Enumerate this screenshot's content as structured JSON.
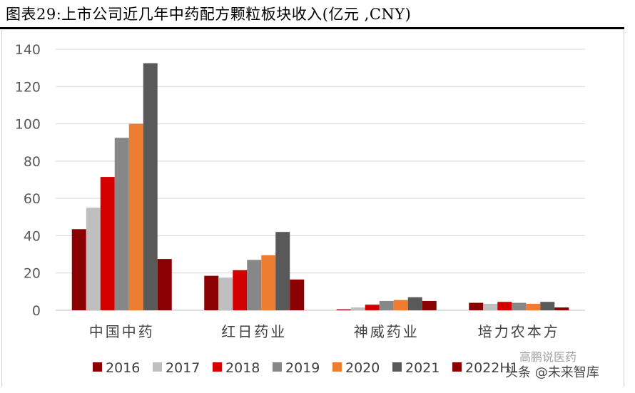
{
  "title": "图表29:上市公司近几年中药配方颗粒板块收入(亿元 ,CNY)",
  "watermark_main": "头条 @未来智库",
  "watermark_sub": "高鹏说医药",
  "chart_data": {
    "type": "bar",
    "title": "图表29:上市公司近几年中药配方颗粒板块收入(亿元 ,CNY)",
    "xlabel": "",
    "ylabel": "",
    "ylim": [
      0,
      140
    ],
    "yticks": [
      0,
      20,
      40,
      60,
      80,
      100,
      120,
      140
    ],
    "grid": true,
    "legend_position": "bottom",
    "categories": [
      "中国中药",
      "红日药业",
      "神威药业",
      "培力农本方"
    ],
    "series": [
      {
        "name": "2016",
        "color": "#8b0000",
        "values": [
          43.5,
          18.5,
          0.5,
          4
        ]
      },
      {
        "name": "2017",
        "color": "#bfbfbf",
        "values": [
          55,
          17.5,
          1.5,
          3.5
        ]
      },
      {
        "name": "2018",
        "color": "#d40000",
        "values": [
          71.5,
          21.5,
          3,
          4.5
        ]
      },
      {
        "name": "2019",
        "color": "#878787",
        "values": [
          92.5,
          27,
          5,
          4
        ]
      },
      {
        "name": "2020",
        "color": "#ed7d31",
        "values": [
          100,
          29.5,
          5.5,
          3.5
        ]
      },
      {
        "name": "2021",
        "color": "#595959",
        "values": [
          132.5,
          42,
          7,
          4.5
        ]
      },
      {
        "name": "2022H1",
        "color": "#8b0000",
        "values": [
          27.5,
          16.5,
          5,
          1.5
        ]
      }
    ]
  }
}
